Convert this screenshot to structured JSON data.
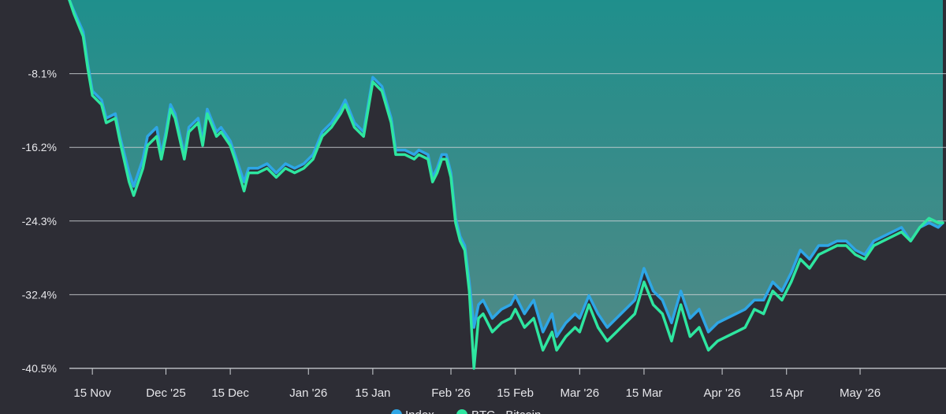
{
  "chart_data": {
    "type": "area",
    "title": "",
    "xlabel": "",
    "ylabel": "",
    "x_start": "2025-11-10",
    "x_end": "2026-05-19",
    "ylim": [
      -40.5,
      0
    ],
    "y_ticks": [
      "-8.1%",
      "-16.2%",
      "-24.3%",
      "-32.4%",
      "-40.5%"
    ],
    "y_tick_values": [
      -8.1,
      -16.2,
      -24.3,
      -32.4,
      -40.5
    ],
    "x_ticks": [
      {
        "label": "15 Nov",
        "date": "2025-11-15"
      },
      {
        "label": "Dec '25",
        "date": "2025-12-01"
      },
      {
        "label": "15 Dec",
        "date": "2025-12-15"
      },
      {
        "label": "Jan '26",
        "date": "2026-01-01"
      },
      {
        "label": "15 Jan",
        "date": "2026-01-15"
      },
      {
        "label": "Feb '26",
        "date": "2026-02-01"
      },
      {
        "label": "15 Feb",
        "date": "2026-02-15"
      },
      {
        "label": "Mar '26",
        "date": "2026-03-01"
      },
      {
        "label": "15 Mar",
        "date": "2026-03-15"
      },
      {
        "label": "Apr '26",
        "date": "2026-04-01"
      },
      {
        "label": "15 Apr",
        "date": "2026-04-15"
      },
      {
        "label": "May '26",
        "date": "2026-05-01"
      }
    ],
    "grid": true,
    "legend_position": "bottom",
    "series": [
      {
        "name": "Index",
        "color": "#2ea6e6",
        "x": [
          "2025-11-10",
          "2025-11-11",
          "2025-11-13",
          "2025-11-14",
          "2025-11-15",
          "2025-11-17",
          "2025-11-18",
          "2025-11-20",
          "2025-11-21",
          "2025-11-23",
          "2025-11-24",
          "2025-11-26",
          "2025-11-27",
          "2025-11-29",
          "2025-11-30",
          "2025-12-01",
          "2025-12-02",
          "2025-12-03",
          "2025-12-05",
          "2025-12-06",
          "2025-12-08",
          "2025-12-09",
          "2025-12-10",
          "2025-12-12",
          "2025-12-13",
          "2025-12-15",
          "2025-12-16",
          "2025-12-18",
          "2025-12-19",
          "2025-12-21",
          "2025-12-23",
          "2025-12-25",
          "2025-12-27",
          "2025-12-29",
          "2025-12-31",
          "2026-01-02",
          "2026-01-04",
          "2026-01-06",
          "2026-01-08",
          "2026-01-09",
          "2026-01-11",
          "2026-01-13",
          "2026-01-15",
          "2026-01-17",
          "2026-01-19",
          "2026-01-20",
          "2026-01-22",
          "2026-01-24",
          "2026-01-25",
          "2026-01-27",
          "2026-01-28",
          "2026-01-29",
          "2026-01-30",
          "2026-01-31",
          "2026-02-01",
          "2026-02-02",
          "2026-02-03",
          "2026-02-04",
          "2026-02-05",
          "2026-02-06",
          "2026-02-07",
          "2026-02-08",
          "2026-02-10",
          "2026-02-12",
          "2026-02-14",
          "2026-02-15",
          "2026-02-17",
          "2026-02-19",
          "2026-02-21",
          "2026-02-23",
          "2026-02-24",
          "2026-02-26",
          "2026-02-28",
          "2026-03-01",
          "2026-03-03",
          "2026-03-05",
          "2026-03-07",
          "2026-03-09",
          "2026-03-11",
          "2026-03-13",
          "2026-03-15",
          "2026-03-17",
          "2026-03-19",
          "2026-03-21",
          "2026-03-23",
          "2026-03-25",
          "2026-03-27",
          "2026-03-29",
          "2026-03-31",
          "2026-04-02",
          "2026-04-04",
          "2026-04-06",
          "2026-04-08",
          "2026-04-10",
          "2026-04-12",
          "2026-04-14",
          "2026-04-16",
          "2026-04-18",
          "2026-04-20",
          "2026-04-22",
          "2026-04-24",
          "2026-04-26",
          "2026-04-28",
          "2026-04-30",
          "2026-05-02",
          "2026-05-04",
          "2026-05-06",
          "2026-05-08",
          "2026-05-10",
          "2026-05-12",
          "2026-05-14",
          "2026-05-16",
          "2026-05-18",
          "2026-05-19"
        ],
        "values": [
          0.0,
          -1.2,
          -3.5,
          -7.0,
          -10.0,
          -11.0,
          -13.0,
          -12.5,
          -15.0,
          -19.0,
          -20.5,
          -17.5,
          -15.0,
          -14.0,
          -17.0,
          -14.5,
          -11.5,
          -12.5,
          -17.0,
          -14.0,
          -13.0,
          -15.5,
          -12.0,
          -14.5,
          -14.0,
          -15.5,
          -17.0,
          -20.0,
          -18.5,
          -18.5,
          -18.0,
          -19.0,
          -18.0,
          -18.5,
          -18.0,
          -17.0,
          -14.5,
          -13.5,
          -12.0,
          -11.0,
          -13.5,
          -14.5,
          -8.5,
          -9.5,
          -13.0,
          -16.5,
          -16.5,
          -17.0,
          -16.5,
          -17.0,
          -19.5,
          -18.5,
          -17.0,
          -17.0,
          -19.0,
          -24.0,
          -26.0,
          -27.0,
          -31.0,
          -36.0,
          -33.5,
          -33.0,
          -35.0,
          -34.0,
          -33.5,
          -32.5,
          -34.5,
          -33.0,
          -36.5,
          -34.5,
          -37.0,
          -35.5,
          -34.5,
          -35.0,
          -32.5,
          -34.5,
          -36.0,
          -35.0,
          -34.0,
          -33.0,
          -29.5,
          -32.0,
          -33.0,
          -35.5,
          -32.0,
          -35.0,
          -34.0,
          -36.5,
          -35.5,
          -35.0,
          -34.5,
          -34.0,
          -33.0,
          -33.0,
          -31.0,
          -32.0,
          -30.0,
          -27.5,
          -28.5,
          -27.0,
          -27.0,
          -26.5,
          -26.5,
          -27.5,
          -28.0,
          -26.5,
          -26.0,
          -25.5,
          -25.0,
          -26.5,
          -25.0,
          -24.5,
          -25.0,
          -24.5
        ]
      },
      {
        "name": "BTC - Bitcoin",
        "color": "#2ee6a0",
        "x": [
          "2025-11-10",
          "2025-11-11",
          "2025-11-13",
          "2025-11-14",
          "2025-11-15",
          "2025-11-17",
          "2025-11-18",
          "2025-11-20",
          "2025-11-21",
          "2025-11-23",
          "2025-11-24",
          "2025-11-26",
          "2025-11-27",
          "2025-11-29",
          "2025-11-30",
          "2025-12-01",
          "2025-12-02",
          "2025-12-03",
          "2025-12-05",
          "2025-12-06",
          "2025-12-08",
          "2025-12-09",
          "2025-12-10",
          "2025-12-12",
          "2025-12-13",
          "2025-12-15",
          "2025-12-16",
          "2025-12-18",
          "2025-12-19",
          "2025-12-21",
          "2025-12-23",
          "2025-12-25",
          "2025-12-27",
          "2025-12-29",
          "2025-12-31",
          "2026-01-02",
          "2026-01-04",
          "2026-01-06",
          "2026-01-08",
          "2026-01-09",
          "2026-01-11",
          "2026-01-13",
          "2026-01-15",
          "2026-01-17",
          "2026-01-19",
          "2026-01-20",
          "2026-01-22",
          "2026-01-24",
          "2026-01-25",
          "2026-01-27",
          "2026-01-28",
          "2026-01-29",
          "2026-01-30",
          "2026-01-31",
          "2026-02-01",
          "2026-02-02",
          "2026-02-03",
          "2026-02-04",
          "2026-02-05",
          "2026-02-06",
          "2026-02-07",
          "2026-02-08",
          "2026-02-10",
          "2026-02-12",
          "2026-02-14",
          "2026-02-15",
          "2026-02-17",
          "2026-02-19",
          "2026-02-21",
          "2026-02-23",
          "2026-02-24",
          "2026-02-26",
          "2026-02-28",
          "2026-03-01",
          "2026-03-03",
          "2026-03-05",
          "2026-03-07",
          "2026-03-09",
          "2026-03-11",
          "2026-03-13",
          "2026-03-15",
          "2026-03-17",
          "2026-03-19",
          "2026-03-21",
          "2026-03-23",
          "2026-03-25",
          "2026-03-27",
          "2026-03-29",
          "2026-03-31",
          "2026-04-02",
          "2026-04-04",
          "2026-04-06",
          "2026-04-08",
          "2026-04-10",
          "2026-04-12",
          "2026-04-14",
          "2026-04-16",
          "2026-04-18",
          "2026-04-20",
          "2026-04-22",
          "2026-04-24",
          "2026-04-26",
          "2026-04-28",
          "2026-04-30",
          "2026-05-02",
          "2026-05-04",
          "2026-05-06",
          "2026-05-08",
          "2026-05-10",
          "2026-05-12",
          "2026-05-14",
          "2026-05-16",
          "2026-05-18",
          "2026-05-19"
        ],
        "values": [
          0.0,
          -1.5,
          -4.0,
          -7.5,
          -10.5,
          -11.5,
          -13.5,
          -13.0,
          -15.5,
          -20.0,
          -21.5,
          -18.5,
          -16.0,
          -15.0,
          -17.5,
          -15.0,
          -12.0,
          -13.0,
          -17.5,
          -14.5,
          -13.5,
          -16.0,
          -12.5,
          -15.0,
          -14.5,
          -16.0,
          -17.5,
          -21.0,
          -19.0,
          -19.0,
          -18.5,
          -19.5,
          -18.5,
          -19.0,
          -18.5,
          -17.5,
          -15.0,
          -14.0,
          -12.5,
          -11.5,
          -14.0,
          -15.0,
          -9.0,
          -10.0,
          -13.5,
          -17.0,
          -17.0,
          -17.5,
          -17.0,
          -17.5,
          -20.0,
          -19.0,
          -17.5,
          -17.5,
          -19.5,
          -24.5,
          -26.5,
          -27.5,
          -32.0,
          -40.5,
          -35.0,
          -34.5,
          -36.5,
          -35.5,
          -35.0,
          -34.0,
          -36.0,
          -35.0,
          -38.5,
          -36.5,
          -38.5,
          -37.0,
          -36.0,
          -36.5,
          -33.5,
          -36.0,
          -37.5,
          -36.5,
          -35.5,
          -34.5,
          -31.0,
          -33.5,
          -34.5,
          -37.5,
          -33.5,
          -37.0,
          -36.0,
          -38.5,
          -37.5,
          -37.0,
          -36.5,
          -36.0,
          -34.0,
          -34.5,
          -32.0,
          -33.0,
          -31.0,
          -28.5,
          -29.5,
          -28.0,
          -27.5,
          -27.0,
          -27.0,
          -28.0,
          -28.5,
          -27.0,
          -26.5,
          -26.0,
          -25.5,
          -26.5,
          -25.0,
          -24.0,
          -24.5,
          -24.5
        ]
      }
    ]
  },
  "colors": {
    "background": "#2d2d35",
    "area_top": "#1f8f8c",
    "area_bottom": "#4f8e8b",
    "gridline": "#cfd2d6",
    "text": "#e6e6ea"
  }
}
